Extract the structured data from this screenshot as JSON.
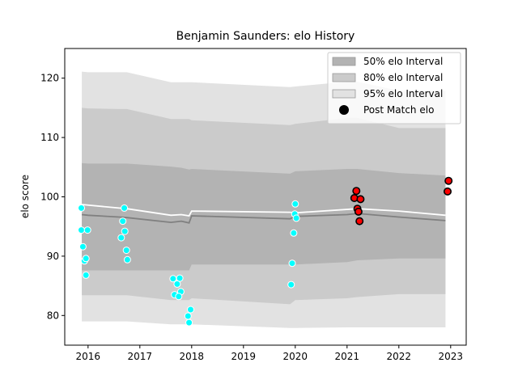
{
  "chart_data": {
    "type": "area",
    "title": "Benjamin Saunders: elo History",
    "xlabel": "",
    "ylabel": "elo score",
    "xlim": [
      2015.55,
      2023.3
    ],
    "ylim": [
      75,
      125
    ],
    "xticks": [
      2016,
      2017,
      2018,
      2019,
      2020,
      2021,
      2022,
      2023
    ],
    "yticks": [
      80,
      90,
      100,
      110,
      120
    ],
    "legend_position": "upper-right",
    "colors": {
      "band_95": "#e2e2e2",
      "band_80": "#cbcbcb",
      "band_50": "#b3b3b3",
      "mean_line": "#808080",
      "post_mean_line": "#ffffff",
      "past_points": "#00ffff",
      "recent_points": "#ff0000"
    },
    "legend": [
      {
        "label": "50% elo Interval",
        "key": "band_50",
        "kind": "patch"
      },
      {
        "label": "80% elo Interval",
        "key": "band_80",
        "kind": "patch"
      },
      {
        "label": "95% elo Interval",
        "key": "band_95",
        "kind": "patch"
      },
      {
        "label": "Post Match elo",
        "key": "marker",
        "kind": "marker"
      }
    ],
    "bands": {
      "x": [
        2015.88,
        2016.0,
        2016.6,
        2016.75,
        2017.6,
        2017.8,
        2017.95,
        2018.0,
        2019.9,
        2020.0,
        2021.0,
        2021.2,
        2022.0,
        2022.9
      ],
      "mean": [
        97.0,
        96.9,
        96.6,
        96.5,
        95.7,
        95.9,
        95.6,
        96.8,
        96.3,
        96.7,
        97.0,
        97.2,
        96.6,
        96.0
      ],
      "p50_low": [
        87.6,
        87.6,
        87.6,
        87.6,
        87.6,
        87.6,
        87.6,
        88.6,
        88.6,
        88.6,
        89.0,
        89.3,
        89.6,
        89.6
      ],
      "p50_high": [
        105.7,
        105.6,
        105.6,
        105.6,
        105.1,
        104.9,
        104.6,
        104.7,
        103.9,
        104.3,
        104.7,
        104.7,
        104.0,
        103.6
      ],
      "p80_low": [
        83.4,
        83.4,
        83.4,
        83.4,
        82.6,
        82.6,
        82.6,
        82.9,
        81.9,
        82.6,
        82.9,
        83.1,
        83.6,
        83.6
      ],
      "p80_high": [
        115.0,
        114.9,
        114.8,
        114.8,
        113.1,
        113.1,
        113.1,
        112.9,
        112.1,
        112.3,
        113.3,
        113.3,
        111.6,
        111.6
      ],
      "p95_low": [
        79.0,
        79.0,
        79.0,
        79.0,
        78.5,
        78.5,
        78.5,
        78.5,
        77.9,
        77.9,
        78.0,
        78.0,
        78.0,
        78.0
      ],
      "p95_high": [
        121.1,
        121.0,
        121.0,
        121.0,
        119.3,
        119.3,
        119.3,
        119.3,
        118.5,
        118.6,
        119.4,
        119.4,
        117.9,
        117.9
      ]
    },
    "post_mean": {
      "x": [
        2015.88,
        2016.6,
        2016.75,
        2017.6,
        2017.8,
        2017.95,
        2018.0,
        2019.9,
        2020.0,
        2021.2,
        2022.0,
        2022.9
      ],
      "y": [
        98.7,
        98.1,
        98.0,
        96.9,
        97.0,
        96.8,
        97.6,
        97.4,
        97.3,
        98.0,
        97.6,
        96.9
      ]
    },
    "points_past": [
      [
        2015.87,
        98.1
      ],
      [
        2015.87,
        94.4
      ],
      [
        2015.9,
        91.6
      ],
      [
        2015.93,
        89.2
      ],
      [
        2015.96,
        89.6
      ],
      [
        2015.96,
        86.8
      ],
      [
        2015.99,
        94.4
      ],
      [
        2016.7,
        98.1
      ],
      [
        2016.67,
        95.9
      ],
      [
        2016.71,
        94.2
      ],
      [
        2016.64,
        93.1
      ],
      [
        2016.74,
        91.0
      ],
      [
        2016.76,
        89.4
      ],
      [
        2017.64,
        86.2
      ],
      [
        2017.77,
        86.3
      ],
      [
        2017.72,
        85.3
      ],
      [
        2017.67,
        83.5
      ],
      [
        2017.79,
        84.0
      ],
      [
        2017.75,
        83.2
      ],
      [
        2017.98,
        81.0
      ],
      [
        2017.93,
        79.9
      ],
      [
        2017.95,
        78.8
      ],
      [
        2019.92,
        85.2
      ],
      [
        2019.94,
        88.8
      ],
      [
        2019.97,
        93.9
      ],
      [
        2019.99,
        97.1
      ],
      [
        2020.0,
        98.8
      ],
      [
        2020.02,
        96.4
      ]
    ],
    "points_recent": [
      [
        2021.18,
        101.0
      ],
      [
        2021.14,
        99.8
      ],
      [
        2021.26,
        99.6
      ],
      [
        2021.2,
        98.0
      ],
      [
        2021.22,
        97.5
      ],
      [
        2021.24,
        95.9
      ],
      [
        2022.96,
        102.7
      ],
      [
        2022.94,
        100.9
      ]
    ]
  }
}
